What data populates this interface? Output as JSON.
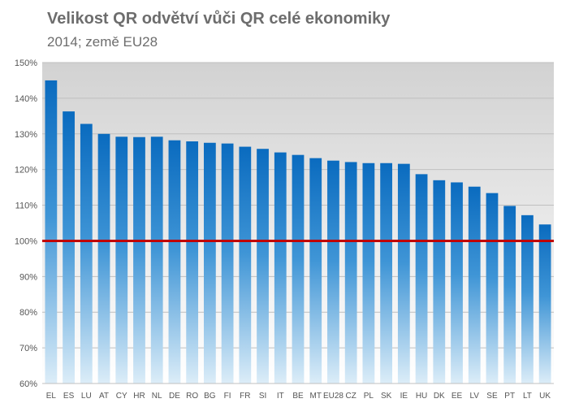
{
  "chart_data": {
    "type": "bar",
    "title": "Velikost QR odvětví vůči QR celé ekonomiky",
    "subtitle": "2014; země EU28",
    "xlabel": "",
    "ylabel": "",
    "categories": [
      "EL",
      "ES",
      "LU",
      "AT",
      "CY",
      "HR",
      "NL",
      "DE",
      "RO",
      "BG",
      "FI",
      "FR",
      "SI",
      "IT",
      "BE",
      "MT",
      "EU28",
      "CZ",
      "PL",
      "SK",
      "IE",
      "HU",
      "DK",
      "EE",
      "LV",
      "SE",
      "PT",
      "LT",
      "UK"
    ],
    "values": [
      145,
      136.3,
      132.8,
      130.0,
      129.2,
      129.1,
      129.2,
      128.2,
      127.9,
      127.5,
      127.3,
      126.4,
      125.8,
      124.8,
      124.1,
      123.2,
      122.5,
      122.1,
      121.8,
      121.8,
      121.6,
      118.7,
      117.0,
      116.4,
      115.2,
      113.4,
      109.8,
      107.2,
      104.6
    ],
    "ylim": [
      60,
      150
    ],
    "yticks": [
      "60%",
      "70%",
      "80%",
      "90%",
      "100%",
      "110%",
      "120%",
      "130%",
      "140%",
      "150%"
    ],
    "reference_line": 100,
    "grid": true,
    "colors": {
      "bar_top": "#0a6bbf",
      "bar_bottom": "#dcedf8",
      "reference": "#c00000",
      "plot_bg_top": "#d2d2d2"
    }
  }
}
